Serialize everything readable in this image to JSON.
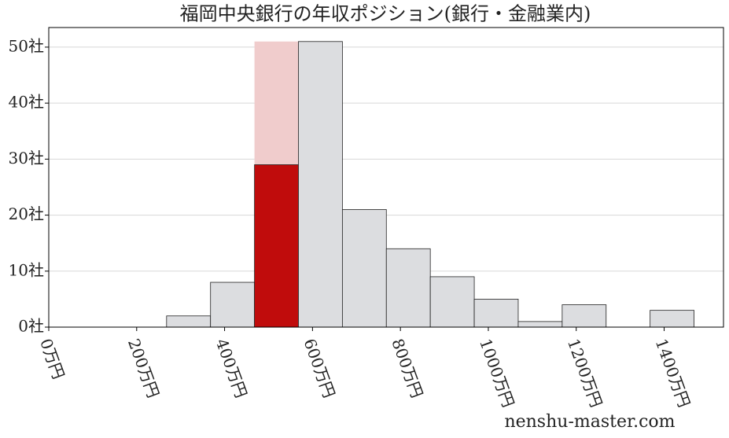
{
  "chart_data": {
    "type": "histogram",
    "title": "福岡中央銀行の年収ポジション(銀行・金融業内)",
    "bins": [
      268,
      368,
      468,
      568,
      668,
      768,
      868,
      968,
      1068,
      1168,
      1268,
      1368,
      1468
    ],
    "values": [
      2,
      8,
      29,
      51,
      21,
      14,
      9,
      5,
      1,
      4,
      0,
      3
    ],
    "color": "#dcdde0",
    "highlight_color": "#c00c0c",
    "highlight_index": 2,
    "highlight_band": {
      "value": 51,
      "color": "#f0cccc"
    },
    "xlim": [
      0,
      1535
    ],
    "ylim": [
      0,
      53.5
    ],
    "xticks": [
      {
        "value": 0,
        "label": "0万円"
      },
      {
        "value": 200,
        "label": "200万円"
      },
      {
        "value": 400,
        "label": "400万円"
      },
      {
        "value": 600,
        "label": "600万円"
      },
      {
        "value": 800,
        "label": "800万円"
      },
      {
        "value": 1000,
        "label": "1000万円"
      },
      {
        "value": 1200,
        "label": "1200万円"
      },
      {
        "value": 1400,
        "label": "1400万円"
      }
    ],
    "yticks": [
      {
        "value": 0,
        "label": "0社"
      },
      {
        "value": 10,
        "label": "10社"
      },
      {
        "value": 20,
        "label": "20社"
      },
      {
        "value": 30,
        "label": "30社"
      },
      {
        "value": 40,
        "label": "40社"
      },
      {
        "value": 50,
        "label": "50社"
      }
    ],
    "grid": true,
    "watermark": "nenshu-master.com"
  }
}
